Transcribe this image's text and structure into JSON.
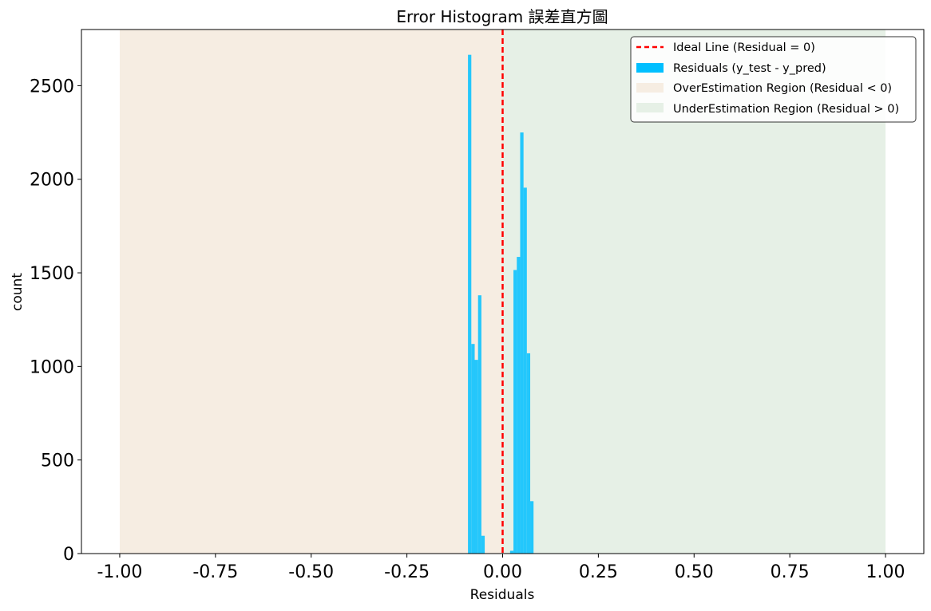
{
  "chart_data": {
    "type": "bar",
    "title": "Error Histogram 誤差直方圖",
    "xlabel": "Residuals",
    "ylabel": "count",
    "xlim": [
      -1.1,
      1.1
    ],
    "ylim": [
      0,
      2800
    ],
    "xticks": [
      -1.0,
      -0.75,
      -0.5,
      -0.25,
      0.0,
      0.25,
      0.5,
      0.75,
      1.0
    ],
    "xtick_labels": [
      "-1.00",
      "-0.75",
      "-0.50",
      "-0.25",
      "0.00",
      "0.25",
      "0.50",
      "0.75",
      "1.00"
    ],
    "yticks": [
      0,
      500,
      1000,
      1500,
      2000,
      2500
    ],
    "ytick_labels": [
      "0",
      "500",
      "1000",
      "1500",
      "2000",
      "2500"
    ],
    "bin_width": 0.00875,
    "bins": [
      {
        "x0": -0.0905,
        "count": 2665
      },
      {
        "x0": -0.0817,
        "count": 1120
      },
      {
        "x0": -0.073,
        "count": 1035
      },
      {
        "x0": -0.0642,
        "count": 1380
      },
      {
        "x0": -0.0555,
        "count": 95
      },
      {
        "x0": 0.0195,
        "count": 15
      },
      {
        "x0": 0.0283,
        "count": 1515
      },
      {
        "x0": 0.037,
        "count": 1585
      },
      {
        "x0": 0.0458,
        "count": 2250
      },
      {
        "x0": 0.0545,
        "count": 1955
      },
      {
        "x0": 0.0633,
        "count": 1070
      },
      {
        "x0": 0.072,
        "count": 280
      }
    ],
    "ideal_line_x": 0,
    "over_region": [
      -1.0,
      0.0
    ],
    "under_region": [
      0.0,
      1.0
    ],
    "legend": {
      "placement": "top-right",
      "entries": [
        "Ideal Line (Residual = 0)",
        "Residuals (y_test - y_pred)",
        "OverEstimation Region (Residual < 0)",
        "UnderEstimation Region (Residual > 0)"
      ]
    },
    "colors": {
      "bars": "#00bfff",
      "ideal_line": "#ff0000",
      "over_region": "#f6ede2",
      "under_region": "#e6f0e6"
    }
  }
}
